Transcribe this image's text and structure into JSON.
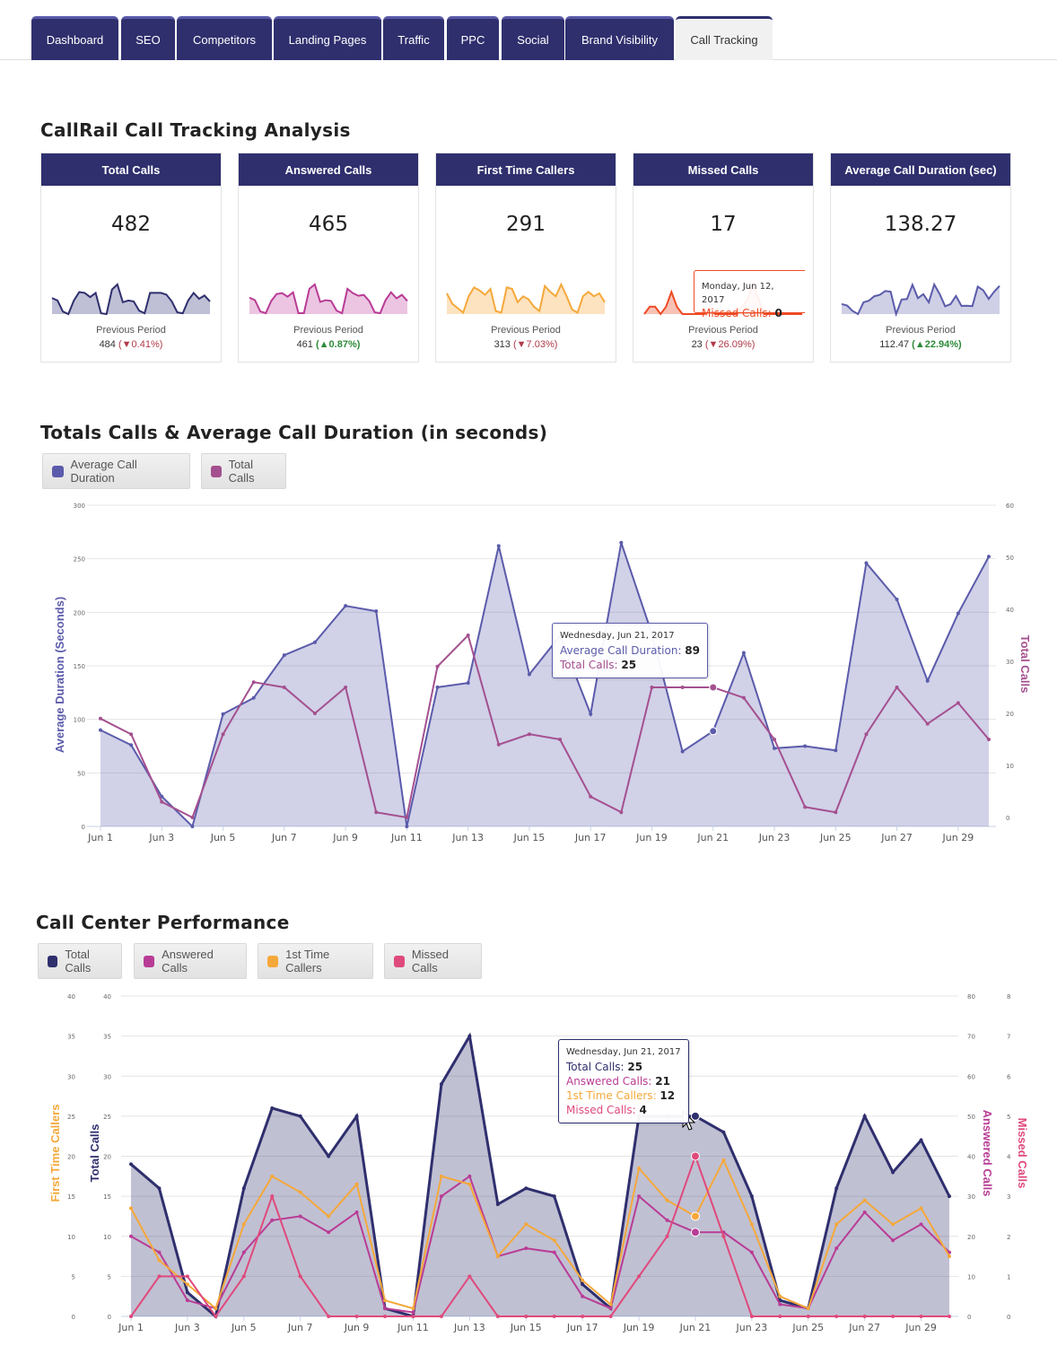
{
  "tabs": [
    {
      "label": "Dashboard",
      "active": false
    },
    {
      "label": "SEO",
      "active": false
    },
    {
      "label": "Competitors",
      "active": false
    },
    {
      "label": "Landing Pages",
      "active": false
    },
    {
      "label": "Traffic",
      "active": false
    },
    {
      "label": "PPC",
      "active": false
    },
    {
      "label": "Social",
      "active": false
    },
    {
      "label": "Brand Visibility",
      "active": false
    },
    {
      "label": "Call Tracking",
      "active": true
    }
  ],
  "summary": {
    "title": "CallRail Call Tracking Analysis",
    "previous_label": "Previous Period",
    "cards": [
      {
        "title": "Total Calls",
        "value": "482",
        "prev": "484",
        "change": "0.41%",
        "direction": "down",
        "color": "#2f2f6e",
        "fill": "#bfc0d6",
        "spark": [
          19,
          16,
          3,
          0,
          16,
          26,
          25,
          20,
          25,
          1,
          0,
          29,
          35,
          14,
          16,
          15,
          4,
          1,
          25,
          25,
          25,
          23,
          15,
          2,
          1,
          16,
          25,
          18,
          22,
          15
        ]
      },
      {
        "title": "Answered Calls",
        "value": "465",
        "prev": "461",
        "change": "0.87%",
        "direction": "up",
        "color": "#b83c95",
        "fill": "#ebc5e1",
        "spark": [
          19,
          16,
          3,
          1,
          15,
          23,
          24,
          20,
          25,
          1,
          1,
          29,
          34,
          14,
          16,
          15,
          4,
          1,
          29,
          24,
          21,
          22,
          15,
          2,
          1,
          16,
          25,
          18,
          22,
          15
        ]
      },
      {
        "title": "First Time Callers",
        "value": "291",
        "prev": "313",
        "change": "7.03%",
        "direction": "down",
        "color": "#f5a83a",
        "fill": "#fde3c0",
        "spark": [
          14,
          7,
          4,
          1,
          12,
          18,
          16,
          13,
          17,
          2,
          1,
          18,
          17,
          8,
          12,
          10,
          5,
          2,
          19,
          15,
          12,
          20,
          12,
          3,
          1,
          12,
          15,
          12,
          14,
          8
        ]
      },
      {
        "title": "Missed Calls",
        "value": "17",
        "prev": "23",
        "change": "26.09%",
        "direction": "down",
        "color": "#ee4a24",
        "fill": "#f7c2b5",
        "spark": [
          0,
          1,
          1,
          0,
          1,
          3,
          1,
          0,
          0,
          0,
          0,
          0,
          1,
          0,
          0,
          0,
          0,
          0,
          1,
          2,
          4,
          2,
          0,
          0,
          0,
          0,
          0,
          0,
          0,
          0
        ],
        "tooltip": {
          "date": "Monday, Jun 12, 2017",
          "label": "Missed Calls",
          "value": "0"
        }
      },
      {
        "title": "Average Call Duration (sec)",
        "value": "138.27",
        "prev": "112.47",
        "change": "22.94%",
        "direction": "up",
        "color": "#5b5bab",
        "fill": "#cfd0e6",
        "spark": [
          90,
          76,
          28,
          0,
          105,
          120,
          160,
          172,
          206,
          201,
          0,
          130,
          134,
          262,
          142,
          178,
          105,
          265,
          180,
          70,
          89,
          162,
          73,
          75,
          71,
          246,
          212,
          136,
          199,
          252
        ]
      }
    ]
  },
  "chart1": {
    "title": "Totals Calls & Average Call Duration (in seconds)",
    "legend": [
      {
        "label": "Average Call Duration",
        "color": "#5b5bab"
      },
      {
        "label": "Total Calls",
        "color": "#a4508f"
      }
    ],
    "tooltip": {
      "date": "Wednesday, Jun 21, 2017",
      "rows": [
        {
          "label": "Average Call Duration",
          "value": "89",
          "color": "#5b5bab"
        },
        {
          "label": "Total Calls",
          "value": "25",
          "color": "#a4508f"
        }
      ]
    }
  },
  "chart2": {
    "title": "Call Center Performance",
    "legend": [
      {
        "label": "Total Calls",
        "color": "#2f2f6e"
      },
      {
        "label": "Answered Calls",
        "color": "#b83c95"
      },
      {
        "label": "1st Time Callers",
        "color": "#f5a83a"
      },
      {
        "label": "Missed Calls",
        "color": "#df4a7c"
      }
    ],
    "tooltip": {
      "date": "Wednesday, Jun 21, 2017",
      "rows": [
        {
          "label": "Total Calls",
          "value": "25",
          "color": "#2f2f6e"
        },
        {
          "label": "Answered Calls",
          "value": "21",
          "color": "#b83c95"
        },
        {
          "label": "1st Time Callers",
          "value": "12",
          "color": "#f5a83a"
        },
        {
          "label": "Missed Calls",
          "value": "4",
          "color": "#df4a7c"
        }
      ]
    }
  },
  "chart_data": [
    {
      "type": "line",
      "title": "Totals Calls & Average Call Duration (in seconds)",
      "x": [
        "Jun 1",
        "Jun 2",
        "Jun 3",
        "Jun 4",
        "Jun 5",
        "Jun 6",
        "Jun 7",
        "Jun 8",
        "Jun 9",
        "Jun 10",
        "Jun 11",
        "Jun 12",
        "Jun 13",
        "Jun 14",
        "Jun 15",
        "Jun 16",
        "Jun 17",
        "Jun 18",
        "Jun 19",
        "Jun 20",
        "Jun 21",
        "Jun 22",
        "Jun 23",
        "Jun 24",
        "Jun 25",
        "Jun 26",
        "Jun 27",
        "Jun 28",
        "Jun 29",
        "Jun 30"
      ],
      "xtick_labels": [
        "Jun 1",
        "Jun 3",
        "Jun 5",
        "Jun 7",
        "Jun 9",
        "Jun 11",
        "Jun 13",
        "Jun 15",
        "Jun 17",
        "Jun 19",
        "Jun 21",
        "Jun 23",
        "Jun 25",
        "Jun 27",
        "Jun 29"
      ],
      "y_left": {
        "label": "Average Duration (Seconds)",
        "range": [
          0,
          300
        ],
        "ticks": [
          "0",
          "50",
          "100",
          "150",
          "200",
          "250",
          "300"
        ]
      },
      "y_right": {
        "label": "Total Calls",
        "range": [
          0,
          60
        ],
        "ticks": [
          "0",
          "10",
          "20",
          "30",
          "40",
          "50",
          "60"
        ]
      },
      "series": [
        {
          "name": "Average Call Duration",
          "axis": "left",
          "type": "area",
          "color": "#5b5bab",
          "values": [
            90,
            76,
            28,
            0,
            105,
            120,
            160,
            172,
            206,
            201,
            0,
            130,
            134,
            262,
            142,
            178,
            105,
            265,
            180,
            70,
            89,
            162,
            73,
            75,
            71,
            246,
            212,
            136,
            199,
            252
          ]
        },
        {
          "name": "Total Calls",
          "axis": "right",
          "type": "line",
          "color": "#a4508f",
          "values": [
            19,
            16,
            3,
            0,
            16,
            26,
            25,
            20,
            25,
            1,
            0,
            29,
            35,
            14,
            16,
            15,
            4,
            1,
            25,
            25,
            25,
            23,
            15,
            2,
            1,
            16,
            25,
            18,
            22,
            15
          ]
        }
      ],
      "legend_position": "top-left",
      "grid": true
    },
    {
      "type": "line",
      "title": "Call Center Performance",
      "x": [
        "Jun 1",
        "Jun 2",
        "Jun 3",
        "Jun 4",
        "Jun 5",
        "Jun 6",
        "Jun 7",
        "Jun 8",
        "Jun 9",
        "Jun 10",
        "Jun 11",
        "Jun 12",
        "Jun 13",
        "Jun 14",
        "Jun 15",
        "Jun 16",
        "Jun 17",
        "Jun 18",
        "Jun 19",
        "Jun 20",
        "Jun 21",
        "Jun 22",
        "Jun 23",
        "Jun 24",
        "Jun 25",
        "Jun 26",
        "Jun 27",
        "Jun 28",
        "Jun 29",
        "Jun 30"
      ],
      "xtick_labels": [
        "Jun 1",
        "Jun 3",
        "Jun 5",
        "Jun 7",
        "Jun 9",
        "Jun 11",
        "Jun 13",
        "Jun 15",
        "Jun 17",
        "Jun 19",
        "Jun 21",
        "Jun 23",
        "Jun 25",
        "Jun 27",
        "Jun 29"
      ],
      "axes": [
        {
          "label": "First Time Callers",
          "side": "left-outer",
          "range": [
            0,
            40
          ],
          "ticks": [
            "0",
            "5",
            "10",
            "15",
            "20",
            "25",
            "30",
            "35",
            "40"
          ],
          "color": "#f5a83a"
        },
        {
          "label": "Total Calls",
          "side": "left-inner",
          "range": [
            0,
            40
          ],
          "ticks": [
            "0",
            "5",
            "10",
            "15",
            "20",
            "25",
            "30",
            "35",
            "40"
          ],
          "color": "#2f2f6e"
        },
        {
          "label": "Answered Calls",
          "side": "right-inner",
          "range": [
            0,
            80
          ],
          "ticks": [
            "0",
            "10",
            "20",
            "30",
            "40",
            "50",
            "60",
            "70",
            "80"
          ],
          "color": "#b83c95"
        },
        {
          "label": "Missed Calls",
          "side": "right-outer",
          "range": [
            0,
            8
          ],
          "ticks": [
            "0",
            "1",
            "2",
            "3",
            "4",
            "5",
            "6",
            "7",
            "8"
          ],
          "color": "#df4a7c"
        }
      ],
      "series": [
        {
          "name": "Total Calls",
          "axis": 1,
          "type": "area",
          "color": "#2f2f6e",
          "values": [
            19,
            16,
            3,
            0,
            16,
            26,
            25,
            20,
            25,
            1,
            0,
            29,
            35,
            14,
            16,
            15,
            4,
            1,
            25,
            25,
            25,
            23,
            15,
            2,
            1,
            16,
            25,
            18,
            22,
            15
          ]
        },
        {
          "name": "Answered Calls",
          "axis": 2,
          "type": "line",
          "color": "#b83c95",
          "values": [
            20,
            16,
            4,
            2,
            16,
            24,
            25,
            21,
            26,
            2,
            1,
            30,
            35,
            15,
            17,
            16,
            5,
            2,
            30,
            24,
            21,
            21,
            16,
            3,
            2,
            17,
            26,
            19,
            23,
            16
          ]
        },
        {
          "name": "1st Time Callers",
          "axis": 0,
          "type": "line",
          "color": "#f5a83a",
          "values": [
            13.5,
            7,
            4,
            1,
            11.5,
            17.5,
            15.5,
            12.5,
            16.5,
            2,
            1,
            17.5,
            16.5,
            7.5,
            11.5,
            9.5,
            4.5,
            1.5,
            18.5,
            14.5,
            12.5,
            19.5,
            11.5,
            2.5,
            1,
            11.5,
            14.5,
            11.5,
            13.5,
            7.5
          ]
        },
        {
          "name": "Missed Calls",
          "axis": 3,
          "type": "line",
          "color": "#df4a7c",
          "values": [
            0,
            1,
            1,
            0,
            1,
            3,
            1,
            0,
            0,
            0,
            0,
            0,
            1,
            0,
            0,
            0,
            0,
            0,
            1,
            2,
            4,
            2,
            0,
            0,
            0,
            0,
            0,
            0,
            0,
            0
          ]
        }
      ],
      "legend_position": "top-left",
      "grid": true
    }
  ]
}
